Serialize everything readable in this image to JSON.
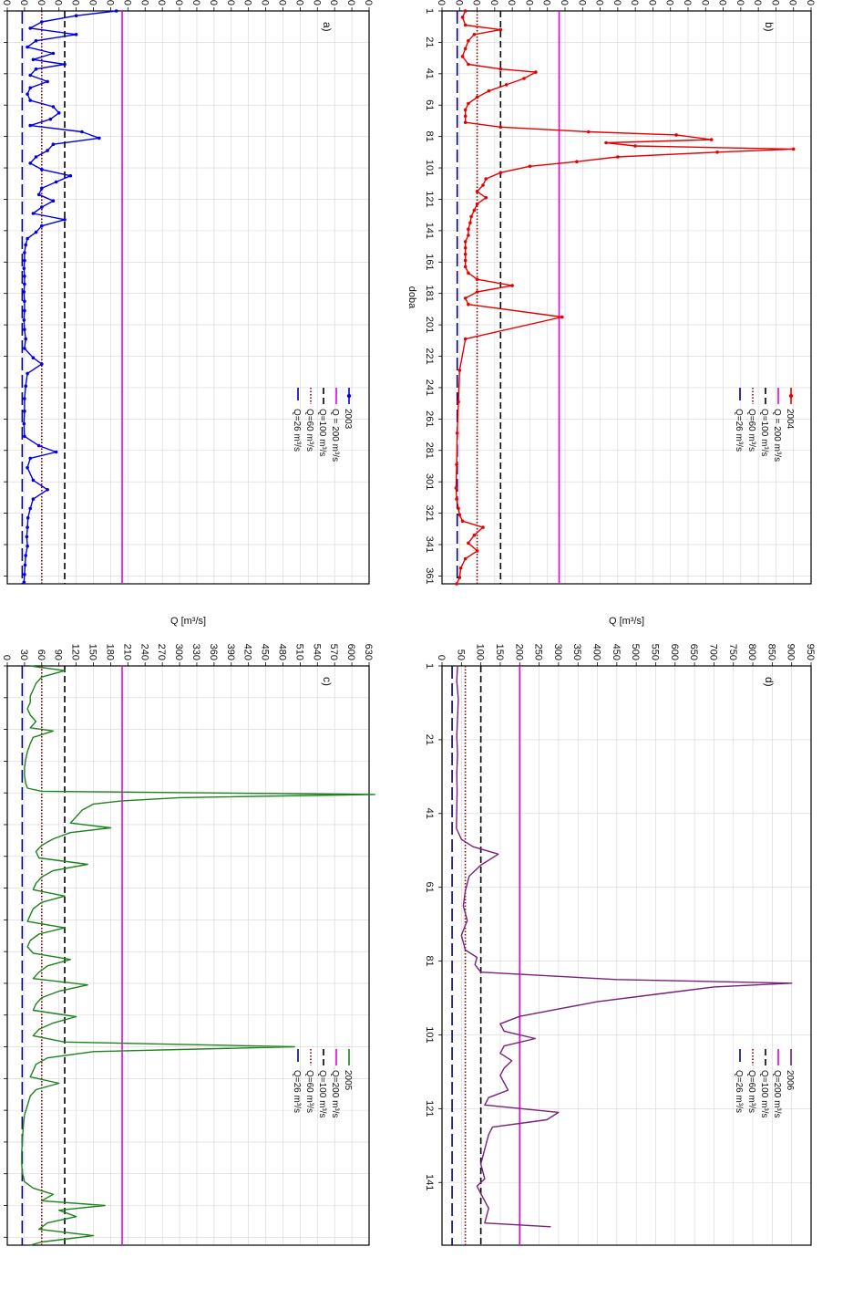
{
  "colors": {
    "q200": "#e600e6",
    "q100": "#000000",
    "q60": "#8b0000",
    "q26": "#00008b",
    "grid": "#d6d6d6"
  },
  "chart_data": [
    {
      "id": "a",
      "type": "line",
      "panel_label": "a)",
      "xlabel": "doba",
      "ylabel": "Q [m³/s]",
      "ylim": [
        0,
        630
      ],
      "yticks": [
        0,
        30,
        60,
        90,
        120,
        150,
        180,
        210,
        240,
        270,
        300,
        330,
        360,
        390,
        420,
        450,
        480,
        510,
        540,
        570,
        600,
        630
      ],
      "xlim": [
        1,
        366
      ],
      "xticks": [
        1,
        21,
        41,
        61,
        81,
        101,
        121,
        141,
        161,
        181,
        201,
        221,
        241,
        261,
        281,
        301,
        321,
        341,
        361
      ],
      "grid": true,
      "legend": {
        "placement": "top-right",
        "entries": [
          "2003",
          "Q = 200 m³/s",
          "Q=100 m³/s",
          "Q=60 m³/s",
          "Q=26 m³/s"
        ]
      },
      "series": [
        {
          "name": "2003",
          "color": "#0000e6",
          "markers": true,
          "x": [
            1,
            4,
            8,
            12,
            16,
            20,
            24,
            28,
            32,
            35,
            38,
            42,
            46,
            50,
            54,
            58,
            62,
            66,
            70,
            74,
            78,
            82,
            86,
            90,
            94,
            98,
            102,
            106,
            110,
            114,
            118,
            122,
            126,
            130,
            134,
            138,
            142,
            146,
            150,
            155,
            160,
            165,
            170,
            175,
            180,
            186,
            192,
            198,
            204,
            210,
            216,
            222,
            226,
            232,
            240,
            248,
            256,
            264,
            272,
            278,
            282,
            286,
            292,
            300,
            306,
            312,
            318,
            324,
            330,
            336,
            342,
            348,
            354,
            360,
            365
          ],
          "y": [
            190,
            120,
            60,
            40,
            120,
            50,
            35,
            80,
            45,
            100,
            50,
            40,
            70,
            40,
            35,
            40,
            80,
            90,
            75,
            40,
            130,
            160,
            80,
            70,
            50,
            40,
            60,
            110,
            85,
            60,
            55,
            80,
            60,
            45,
            100,
            60,
            50,
            35,
            32,
            30,
            30,
            29,
            30,
            30,
            29,
            30,
            30,
            29,
            30,
            32,
            30,
            45,
            60,
            35,
            32,
            30,
            30,
            29,
            30,
            55,
            85,
            40,
            35,
            45,
            70,
            45,
            40,
            36,
            35,
            34,
            35,
            32,
            31,
            30,
            29
          ]
        }
      ]
    },
    {
      "id": "b",
      "type": "line",
      "panel_label": "b)",
      "xlabel": "doba",
      "ylabel": "Q [m³/s]",
      "ylim": [
        0,
        630
      ],
      "yticks": [
        0,
        30,
        60,
        90,
        120,
        150,
        180,
        210,
        240,
        270,
        300,
        330,
        360,
        390,
        420,
        450,
        480,
        510,
        540,
        570,
        600,
        630
      ],
      "xlim": [
        1,
        366
      ],
      "xticks": [
        1,
        21,
        41,
        61,
        81,
        101,
        121,
        141,
        161,
        181,
        201,
        221,
        241,
        261,
        281,
        301,
        321,
        341,
        361
      ],
      "grid": true,
      "legend": {
        "placement": "top-right",
        "entries": [
          "2004",
          "Q = 200 m³/s",
          "Q=100 m³/s",
          "Q=60 m³/s",
          "Q=26 m³/s"
        ]
      },
      "series": [
        {
          "name": "2004",
          "color": "#e60000",
          "markers": true,
          "x": [
            1,
            5,
            10,
            13,
            16,
            20,
            25,
            30,
            35,
            38,
            40,
            44,
            48,
            52,
            56,
            60,
            64,
            68,
            72,
            75,
            78,
            80,
            83,
            85,
            87,
            89,
            91,
            94,
            97,
            100,
            104,
            108,
            112,
            116,
            120,
            124,
            128,
            132,
            136,
            140,
            144,
            148,
            152,
            156,
            160,
            164,
            168,
            172,
            176,
            180,
            184,
            188,
            196,
            210,
            230,
            250,
            270,
            290,
            305,
            312,
            318,
            322,
            326,
            330,
            335,
            340,
            345,
            350,
            356,
            362,
            366
          ],
          "y": [
            40,
            35,
            40,
            100,
            55,
            45,
            40,
            35,
            45,
            100,
            160,
            140,
            110,
            80,
            60,
            45,
            40,
            40,
            40,
            100,
            250,
            400,
            460,
            280,
            330,
            600,
            470,
            300,
            230,
            150,
            100,
            75,
            70,
            60,
            75,
            60,
            55,
            50,
            48,
            45,
            45,
            40,
            40,
            40,
            40,
            40,
            45,
            60,
            120,
            60,
            40,
            45,
            205,
            40,
            30,
            28,
            26,
            25,
            24,
            25,
            28,
            30,
            35,
            70,
            55,
            45,
            60,
            40,
            32,
            30,
            25
          ]
        }
      ]
    },
    {
      "id": "c",
      "type": "line",
      "panel_label": "c)",
      "xlabel": "doba",
      "ylabel": "Q [m³/s]",
      "ylim": [
        0,
        630
      ],
      "yticks": [
        0,
        30,
        60,
        90,
        120,
        150,
        180,
        210,
        240,
        270,
        300,
        330,
        360,
        390,
        420,
        450,
        480,
        510,
        540,
        570,
        600,
        630
      ],
      "xlim": [
        1,
        366
      ],
      "xticks": [
        1,
        21,
        41,
        61,
        81,
        101,
        121,
        141,
        161,
        181,
        201,
        221,
        241,
        261,
        281,
        301,
        321,
        341,
        361
      ],
      "grid": true,
      "legend": {
        "placement": "top-right",
        "entries": [
          "2005",
          "Q=200 m³/s",
          "Q=100 m³/s",
          "Q=60 m³/s",
          "Q=26 m³/s"
        ]
      },
      "series": [
        {
          "name": "2005",
          "color": "#1e821e",
          "markers": false,
          "x": [
            1,
            4,
            8,
            12,
            16,
            20,
            24,
            28,
            32,
            36,
            40,
            42,
            46,
            50,
            55,
            60,
            65,
            70,
            75,
            78,
            80,
            82,
            84,
            86,
            88,
            92,
            96,
            100,
            103,
            106,
            110,
            114,
            118,
            122,
            126,
            130,
            134,
            138,
            142,
            146,
            150,
            154,
            158,
            162,
            166,
            170,
            174,
            178,
            182,
            186,
            190,
            194,
            198,
            202,
            206,
            210,
            214,
            218,
            222,
            226,
            230,
            234,
            238,
            241,
            244,
            248,
            252,
            256,
            260,
            264,
            268,
            272,
            278,
            284,
            290,
            296,
            302,
            308,
            314,
            320,
            326,
            330,
            334,
            338,
            341,
            344,
            348,
            352,
            356,
            360,
            364,
            366
          ],
          "y": [
            40,
            100,
            60,
            50,
            45,
            40,
            40,
            35,
            40,
            50,
            40,
            80,
            45,
            40,
            35,
            32,
            30,
            30,
            32,
            35,
            60,
            640,
            300,
            200,
            150,
            130,
            120,
            110,
            180,
            110,
            80,
            60,
            50,
            55,
            140,
            80,
            60,
            50,
            45,
            100,
            60,
            45,
            40,
            35,
            100,
            55,
            40,
            35,
            45,
            110,
            70,
            55,
            45,
            140,
            90,
            60,
            50,
            45,
            120,
            80,
            55,
            45,
            100,
            500,
            150,
            70,
            50,
            45,
            40,
            90,
            50,
            40,
            35,
            30,
            28,
            27,
            26,
            25,
            25,
            26,
            30,
            45,
            80,
            60,
            170,
            90,
            120,
            70,
            55,
            150,
            60,
            40
          ]
        }
      ]
    },
    {
      "id": "d",
      "type": "line",
      "panel_label": "d)",
      "xlabel": "",
      "ylabel": "Q [m³/s]",
      "ylim": [
        0,
        950
      ],
      "yticks": [
        0,
        50,
        100,
        150,
        200,
        250,
        300,
        350,
        400,
        450,
        500,
        550,
        600,
        650,
        700,
        750,
        800,
        850,
        900,
        950
      ],
      "xlim": [
        1,
        158
      ],
      "xticks": [
        1,
        21,
        41,
        61,
        81,
        101,
        121,
        141
      ],
      "grid": true,
      "legend": {
        "placement": "top-right",
        "entries": [
          "2006",
          "Q=200 m³/s",
          "Q=100 m³/s",
          "Q=60 m³/s",
          "Q=26 m³/s"
        ]
      },
      "series": [
        {
          "name": "2006",
          "color": "#7a1f7a",
          "markers": false,
          "x": [
            1,
            5,
            10,
            15,
            20,
            25,
            30,
            35,
            40,
            45,
            48,
            50,
            52,
            55,
            58,
            62,
            66,
            70,
            74,
            78,
            80,
            82,
            84,
            86,
            87,
            88,
            90,
            92,
            94,
            96,
            98,
            100,
            102,
            104,
            106,
            108,
            110,
            112,
            114,
            116,
            118,
            120,
            122,
            124,
            126,
            128,
            132,
            136,
            140,
            142,
            144,
            148,
            152,
            153
          ],
          "y": [
            40,
            38,
            42,
            40,
            38,
            40,
            38,
            39,
            38,
            37,
            50,
            80,
            145,
            100,
            70,
            60,
            55,
            65,
            50,
            60,
            90,
            85,
            100,
            450,
            900,
            700,
            550,
            400,
            300,
            200,
            150,
            160,
            240,
            160,
            150,
            180,
            160,
            150,
            160,
            170,
            120,
            110,
            300,
            270,
            130,
            120,
            110,
            100,
            110,
            90,
            100,
            120,
            110,
            280
          ]
        }
      ]
    }
  ],
  "reference_lines": [
    {
      "value": 200,
      "color": "#e600e6",
      "dash": "solid"
    },
    {
      "value": 100,
      "color": "#000000",
      "dash": "dashed"
    },
    {
      "value": 60,
      "color": "#8b0000",
      "dash": "dotted"
    },
    {
      "value": 26,
      "color": "#00008b",
      "dash": "longdash"
    }
  ]
}
